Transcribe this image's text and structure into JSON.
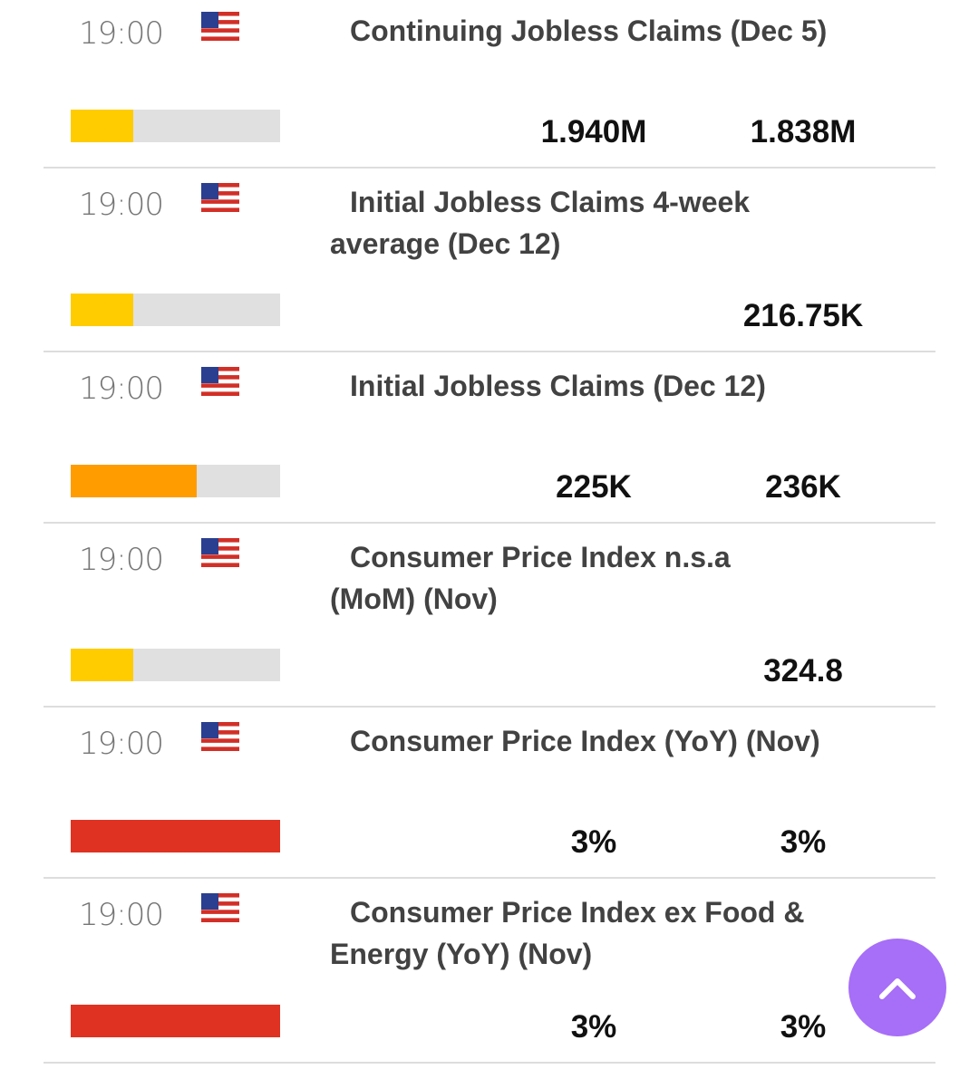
{
  "events": [
    {
      "time": "19:00",
      "country": "United States",
      "flag_icon": "us-flag-icon",
      "title": "Continuing Jobless Claims (Dec 5)",
      "impact": "low",
      "impact_level": 0.3,
      "actual": "1.940M",
      "consensus": "1.838M"
    },
    {
      "time": "19:00",
      "country": "United States",
      "flag_icon": "us-flag-icon",
      "title": "Initial Jobless Claims 4-week average (Dec 12)",
      "impact": "low",
      "impact_level": 0.3,
      "actual": "",
      "consensus": "216.75K"
    },
    {
      "time": "19:00",
      "country": "United States",
      "flag_icon": "us-flag-icon",
      "title": "Initial Jobless Claims (Dec 12)",
      "impact": "medium",
      "impact_level": 0.6,
      "actual": "225K",
      "consensus": "236K"
    },
    {
      "time": "19:00",
      "country": "United States",
      "flag_icon": "us-flag-icon",
      "title": "Consumer Price Index n.s.a (MoM) (Nov)",
      "impact": "low",
      "impact_level": 0.3,
      "actual": "",
      "consensus": "324.8"
    },
    {
      "time": "19:00",
      "country": "United States",
      "flag_icon": "us-flag-icon",
      "title": "Consumer Price Index (YoY) (Nov)",
      "impact": "high",
      "impact_level": 1.0,
      "actual": "3%",
      "consensus": "3%"
    },
    {
      "time": "19:00",
      "country": "United States",
      "flag_icon": "us-flag-icon",
      "title": "Consumer Price Index ex Food & Energy (YoY) (Nov)",
      "impact": "high",
      "impact_level": 1.0,
      "actual": "3%",
      "consensus": "3%"
    }
  ],
  "colors": {
    "low": "#ffcc00",
    "medium": "#ff9c00",
    "high": "#df3222",
    "fab": "#a76ef8"
  },
  "fab": {
    "icon": "chevron-up-icon"
  }
}
